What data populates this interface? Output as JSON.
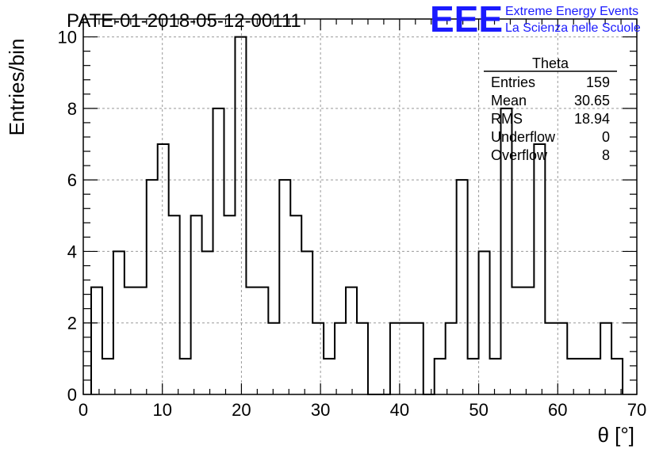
{
  "header": {
    "title": "PATE-01-2018-05-12-00111",
    "logo_text": "EEE",
    "logo_line1": "Extreme Energy Events",
    "logo_line2": "La Scienza nelle Scuole"
  },
  "stats": {
    "name": "Theta",
    "rows": [
      {
        "label": "Entries",
        "value": "159"
      },
      {
        "label": "Mean",
        "value": "30.65"
      },
      {
        "label": "RMS",
        "value": "18.94"
      },
      {
        "label": "Underflow",
        "value": "0"
      },
      {
        "label": "Overflow",
        "value": "8"
      }
    ]
  },
  "colors": {
    "logo": "#1a1aff",
    "line": "#000000",
    "grid": "#999999"
  },
  "chart_data": {
    "type": "bar",
    "histogram": true,
    "title": "PATE-01-2018-05-12-00111",
    "xlabel": "θ [°]",
    "ylabel": "Entries/bin",
    "xlim": [
      0,
      70
    ],
    "ylim": [
      0,
      10.5
    ],
    "bin_width": 1.4,
    "x_start": 1.0,
    "values": [
      3,
      1,
      4,
      3,
      3,
      6,
      7,
      5,
      1,
      5,
      4,
      8,
      5,
      10,
      3,
      3,
      2,
      6,
      5,
      4,
      2,
      1,
      2,
      3,
      2,
      0,
      0,
      2,
      2,
      2,
      0,
      1,
      2,
      6,
      1,
      4,
      1,
      8,
      3,
      3,
      7,
      2,
      2,
      1,
      1,
      1,
      2,
      1
    ],
    "x_ticks": [
      0,
      10,
      20,
      30,
      40,
      50,
      60,
      70
    ],
    "y_ticks": [
      0,
      2,
      4,
      6,
      8,
      10
    ],
    "grid": true
  }
}
